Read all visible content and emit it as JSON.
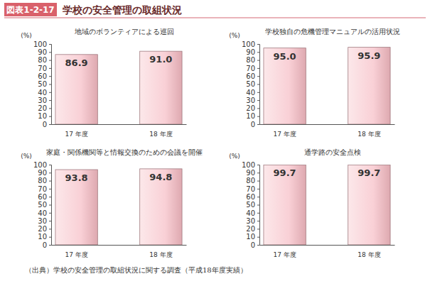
{
  "header": {
    "label": "図表1-2-17",
    "title": "学校の安全管理の取組状況"
  },
  "source": "（出典）学校の安全管理の取組状況に関する調査（平成18年度実績）",
  "chart_data": [
    {
      "type": "bar",
      "title": "地域のボランティアによる巡回",
      "y_label": "(%)",
      "categories": [
        "17 年度",
        "18 年度"
      ],
      "values": [
        86.9,
        91.0
      ],
      "value_labels": [
        "86.9",
        "91.0"
      ],
      "color": "#f7bcc4",
      "ylim": [
        0,
        100
      ],
      "yticks": [
        0,
        10,
        20,
        30,
        40,
        50,
        60,
        70,
        80,
        90,
        100
      ],
      "grid": false,
      "data_labels": true
    },
    {
      "type": "bar",
      "title": "学校独自の危機管理マニュアルの活用状況",
      "y_label": "(%)",
      "categories": [
        "17 年度",
        "18 年度"
      ],
      "values": [
        95.0,
        95.9
      ],
      "value_labels": [
        "95.0",
        "95.9"
      ],
      "color": "#f7bcc4",
      "ylim": [
        0,
        100
      ],
      "yticks": [
        0,
        10,
        20,
        30,
        40,
        50,
        60,
        70,
        80,
        90,
        100
      ],
      "grid": false,
      "data_labels": true
    },
    {
      "type": "bar",
      "title": "家庭・関係機関等と情報交換のための会議を開催",
      "y_label": "(%)",
      "categories": [
        "17 年度",
        "18 年度"
      ],
      "values": [
        93.8,
        94.8
      ],
      "value_labels": [
        "93.8",
        "94.8"
      ],
      "color": "#f7bcc4",
      "ylim": [
        0,
        100
      ],
      "yticks": [
        0,
        10,
        20,
        30,
        40,
        50,
        60,
        70,
        80,
        90,
        100
      ],
      "grid": false,
      "data_labels": true
    },
    {
      "type": "bar",
      "title": "通学路の安全点検",
      "y_label": "(%)",
      "categories": [
        "17 年度",
        "18 年度"
      ],
      "values": [
        99.7,
        99.7
      ],
      "value_labels": [
        "99.7",
        "99.7"
      ],
      "color": "#f7bcc4",
      "ylim": [
        0,
        100
      ],
      "yticks": [
        0,
        10,
        20,
        30,
        40,
        50,
        60,
        70,
        80,
        90,
        100
      ],
      "grid": false,
      "data_labels": true
    }
  ]
}
